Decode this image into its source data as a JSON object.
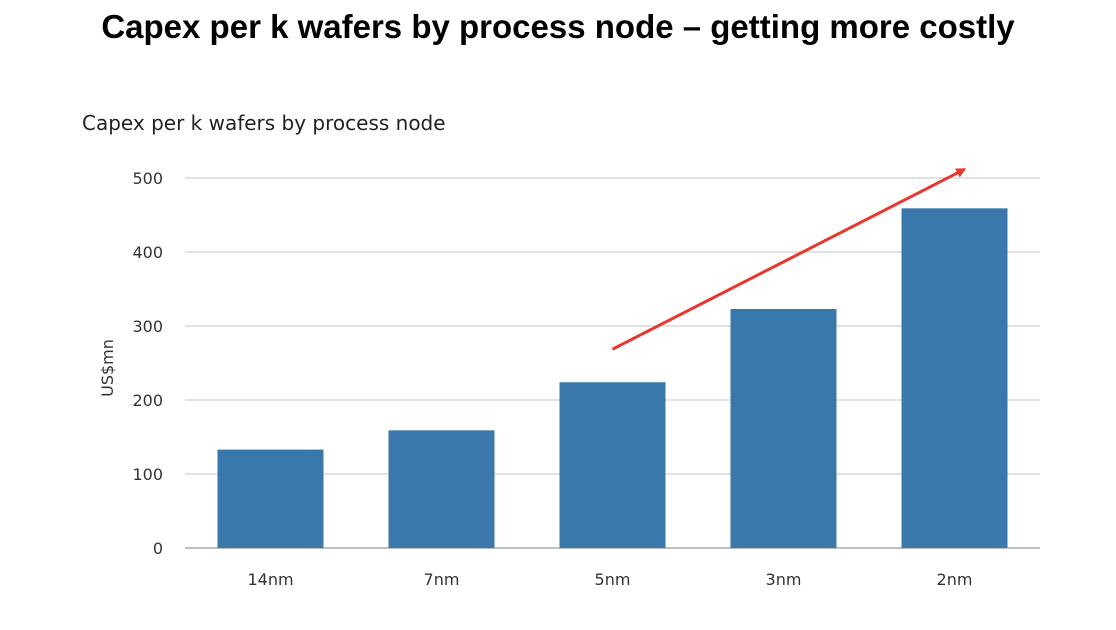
{
  "page": {
    "title": "Capex per k wafers by process node – getting more costly"
  },
  "chart_data": {
    "type": "bar",
    "title": "Capex per k wafers by process node",
    "xlabel": "",
    "ylabel": "US$mn",
    "categories": [
      "14nm",
      "7nm",
      "5nm",
      "3nm",
      "2nm"
    ],
    "values": [
      133,
      159,
      224,
      323,
      459
    ],
    "ylim": [
      0,
      500
    ],
    "yticks": [
      0,
      100,
      200,
      300,
      400,
      500
    ],
    "grid": true,
    "legend": "none",
    "colors": {
      "bar": "#3a78ab",
      "grid": "#d9d9d9",
      "arrow": "#e8372f"
    },
    "annotations": [
      {
        "type": "arrow",
        "from_category": "5nm",
        "to_category": "2nm",
        "meaning": "rising trend"
      }
    ]
  }
}
